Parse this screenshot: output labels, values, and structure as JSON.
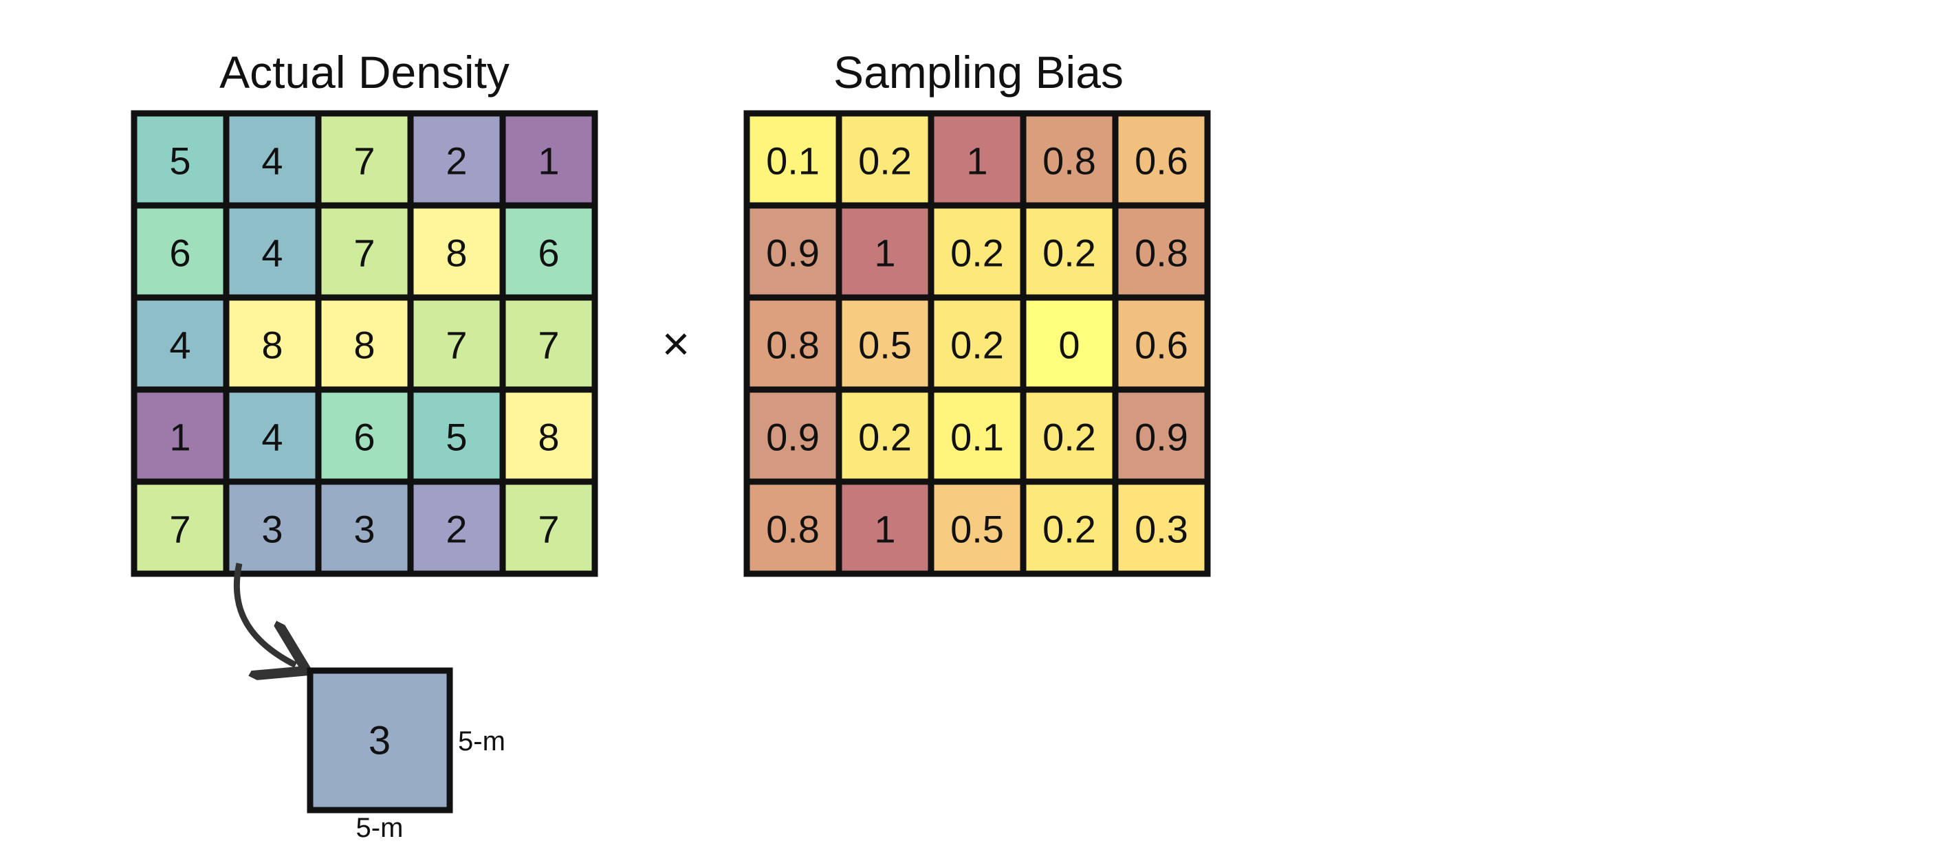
{
  "left_grid": {
    "title": "Actual Density",
    "values": [
      [
        "5",
        "4",
        "7",
        "2",
        "1"
      ],
      [
        "6",
        "4",
        "7",
        "8",
        "6"
      ],
      [
        "4",
        "8",
        "8",
        "7",
        "7"
      ],
      [
        "1",
        "4",
        "6",
        "5",
        "8"
      ],
      [
        "7",
        "3",
        "3",
        "2",
        "7"
      ]
    ],
    "colors": [
      [
        "#8fd0c5",
        "#8ebfc9",
        "#cfeb9c",
        "#a09fc5",
        "#9c7baa"
      ],
      [
        "#9fdfbb",
        "#8ebfc9",
        "#cfeb9c",
        "#fff59a",
        "#a0e0bc"
      ],
      [
        "#8ebfc9",
        "#fff59a",
        "#fff59a",
        "#cfeb9c",
        "#cfeb9c"
      ],
      [
        "#9c7baa",
        "#8ebfc9",
        "#a0e0bc",
        "#8fd0c5",
        "#fff59a"
      ],
      [
        "#cfeb9c",
        "#98acc6",
        "#98acc6",
        "#a09fc5",
        "#cfeb9c"
      ]
    ]
  },
  "operator": "×",
  "right_grid": {
    "title": "Sampling Bias",
    "values": [
      [
        "0.1",
        "0.2",
        "1",
        "0.8",
        "0.6"
      ],
      [
        "0.9",
        "1",
        "0.2",
        "0.2",
        "0.8"
      ],
      [
        "0.8",
        "0.5",
        "0.2",
        "0",
        "0.6"
      ],
      [
        "0.9",
        "0.2",
        "0.1",
        "0.2",
        "0.9"
      ],
      [
        "0.8",
        "1",
        "0.5",
        "0.2",
        "0.3"
      ]
    ],
    "colors": [
      [
        "#fff57a",
        "#fde97a",
        "#c47a7a",
        "#d99e7c",
        "#f2c07e"
      ],
      [
        "#d49a80",
        "#c47a7a",
        "#fde97a",
        "#fde97a",
        "#d99e7c"
      ],
      [
        "#dca07d",
        "#f8cc80",
        "#fde97a",
        "#fffe7d",
        "#f2c07e"
      ],
      [
        "#d49a80",
        "#fde97a",
        "#fff57a",
        "#fde97a",
        "#d49a80"
      ],
      [
        "#dca07d",
        "#c47a7a",
        "#f8cc80",
        "#fde97a",
        "#fde37a"
      ]
    ]
  },
  "zoom": {
    "value": "3",
    "color": "#98acc6",
    "side_label": "5-m",
    "bottom_label": "5-m"
  }
}
